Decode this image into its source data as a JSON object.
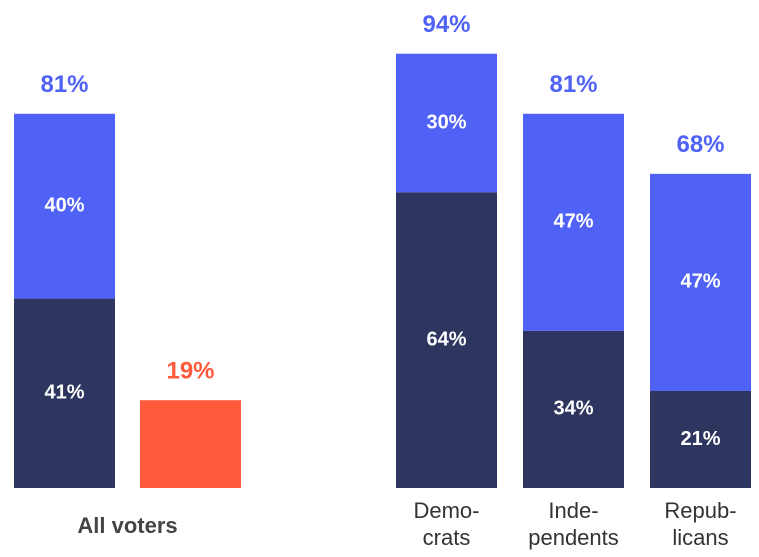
{
  "chart_data": [
    {
      "type": "stacked_bar",
      "x_label": "All voters",
      "categories": [
        null,
        null
      ],
      "series": [
        {
          "color": "#2e3660",
          "values": [
            41,
            null
          ],
          "value_labels": [
            "41%",
            null
          ]
        },
        {
          "color": "#4f62f5",
          "values": [
            40,
            null
          ],
          "value_labels": [
            "40%",
            null
          ]
        },
        {
          "color": "#ff5a3c",
          "values": [
            null,
            19
          ],
          "value_labels": [
            null,
            null
          ]
        }
      ],
      "totals": [
        81,
        19
      ],
      "total_labels": [
        "81%",
        "19%"
      ],
      "ylim": [
        0,
        100
      ]
    },
    {
      "type": "stacked_bar",
      "categories": [
        [
          "Demo-",
          "crats"
        ],
        [
          "Inde-",
          "pendents"
        ],
        [
          "Repub-",
          "licans"
        ]
      ],
      "series": [
        {
          "color": "#2e3660",
          "values": [
            64,
            34,
            21
          ],
          "value_labels": [
            "64%",
            "34%",
            "21%"
          ]
        },
        {
          "color": "#4f62f5",
          "values": [
            30,
            47,
            47
          ],
          "value_labels": [
            "30%",
            "47%",
            "47%"
          ]
        }
      ],
      "totals": [
        94,
        81,
        68
      ],
      "total_labels": [
        "94%",
        "81%",
        "68%"
      ],
      "ylim": [
        0,
        100
      ]
    }
  ]
}
